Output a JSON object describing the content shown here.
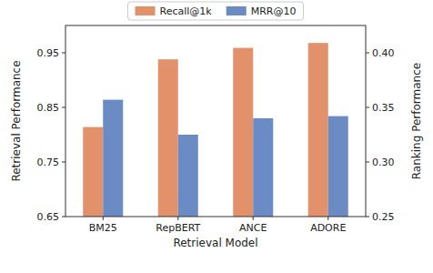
{
  "chart_data": {
    "type": "bar",
    "x_label": "Retrieval Model",
    "y_label": "Retrieval Performance",
    "y2_label": "Ranking Performance",
    "categories": [
      "BM25",
      "RepBERT",
      "ANCE",
      "ADORE"
    ],
    "series": [
      {
        "name": "Recall@1k",
        "color": "#e3916a",
        "values": [
          0.814,
          0.938,
          0.959,
          0.968
        ]
      },
      {
        "name": "MRR@10",
        "color": "#6a8bc4",
        "axis": "y2",
        "values": [
          0.357,
          0.325,
          0.34,
          0.342
        ]
      }
    ],
    "ylim": [
      0.65,
      1.0
    ],
    "yticks": [
      0.65,
      0.75,
      0.85,
      0.95
    ],
    "y2lim": [
      0.25,
      0.425
    ],
    "y2ticks": [
      {
        "value": 0.25,
        "label": "0.25"
      },
      {
        "value": 0.3,
        "label": "0.30"
      },
      {
        "value": 0.35,
        "label": "0.35"
      },
      {
        "value": 0.4,
        "label": "0.40"
      }
    ],
    "legend": "top",
    "grid": false
  }
}
